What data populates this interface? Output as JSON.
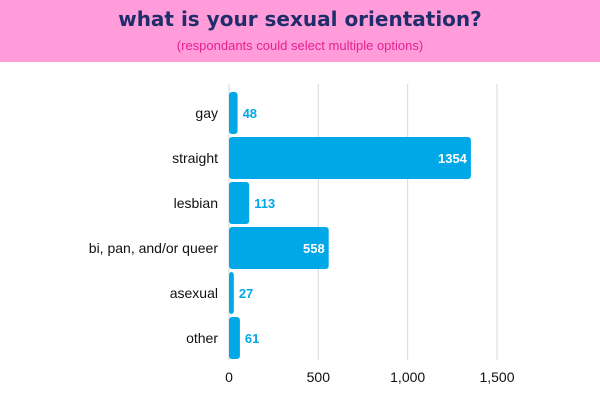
{
  "header": {
    "title": "what is your sexual orientation?",
    "subtitle": "(respondants could select multiple options)"
  },
  "colors": {
    "header_bg": "#ff9cd9",
    "title": "#1f2d6b",
    "subtitle": "#e6218f",
    "bar": "#00a8e8",
    "value_outside": "#00a8e8",
    "value_inside": "#ffffff"
  },
  "chart_data": {
    "type": "bar",
    "orientation": "horizontal",
    "title": "what is your sexual orientation?",
    "subtitle": "(respondants could select multiple options)",
    "categories": [
      "gay",
      "straight",
      "lesbian",
      "bi, pan, and/or queer",
      "asexual",
      "other"
    ],
    "values": [
      48,
      1354,
      113,
      558,
      27,
      61
    ],
    "value_labels": [
      "48",
      "1354",
      "113",
      "558",
      "27",
      "61"
    ],
    "xlim": [
      0,
      1500
    ],
    "xticks": [
      0,
      500,
      1000,
      1500
    ],
    "xtick_labels": [
      "0",
      "500",
      "1,000",
      "1,500"
    ],
    "xlabel": "",
    "ylabel": "",
    "grid": true,
    "legend": false
  }
}
